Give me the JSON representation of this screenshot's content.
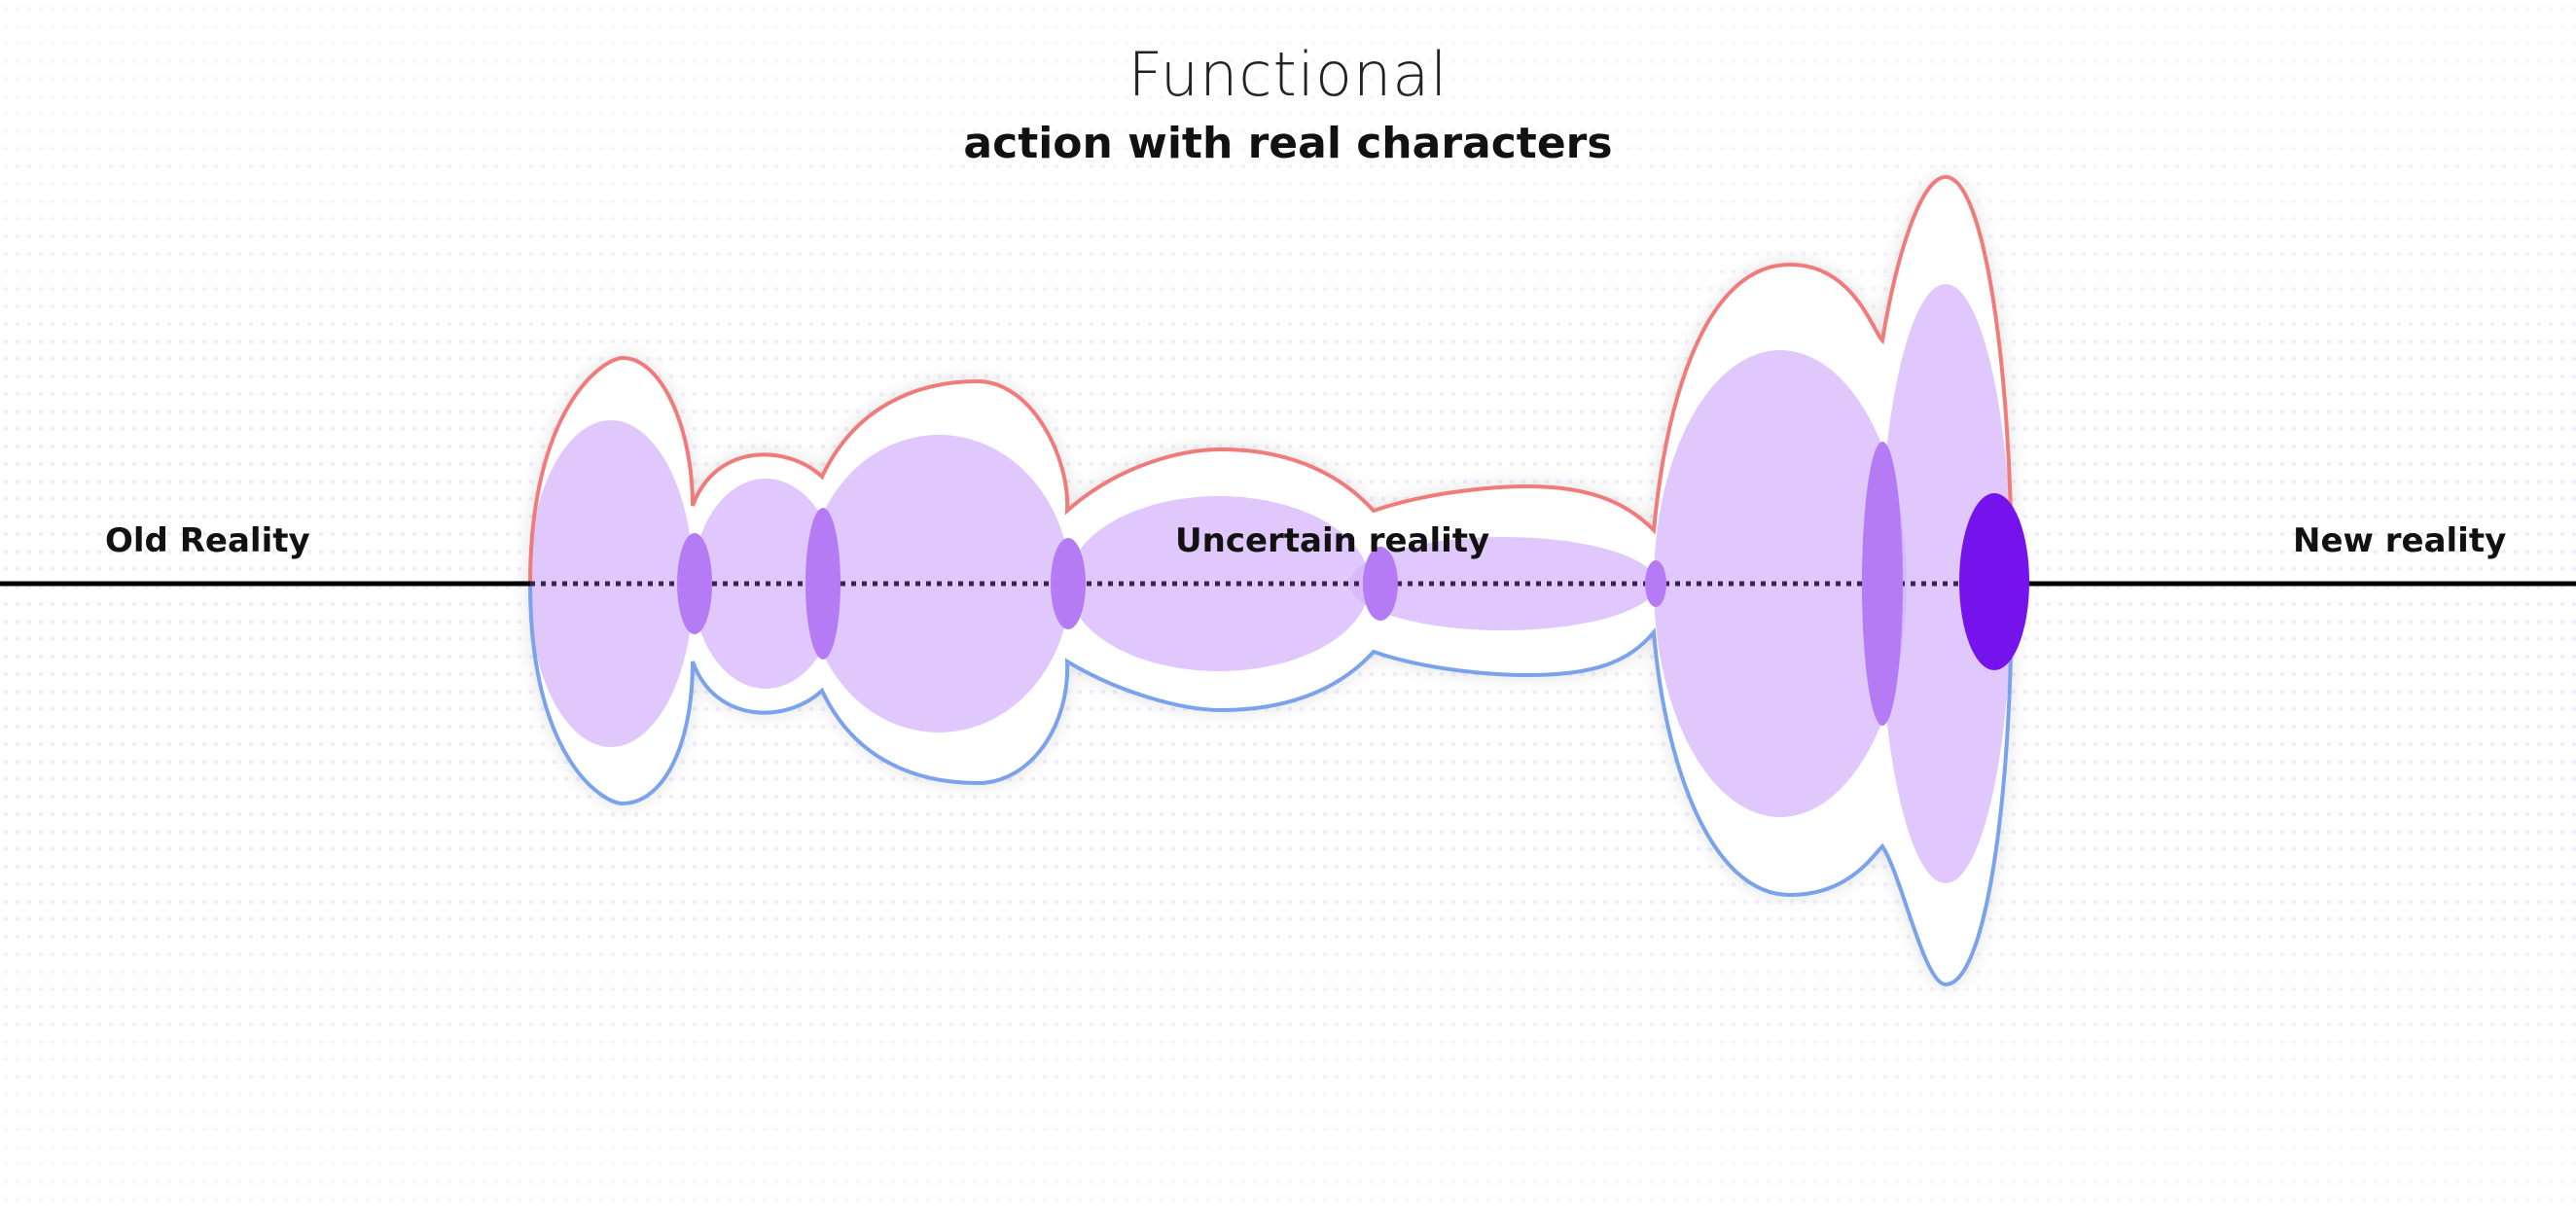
{
  "header": {
    "title": "Functional",
    "subtitle": "action with real characters"
  },
  "labels": {
    "old_reality": "Old Reality",
    "uncertain_reality": "Uncertain reality",
    "new_reality": "New reality"
  },
  "colors": {
    "upper_outline": "#f07b7b",
    "lower_outline": "#7ba2ec",
    "light_fill": "#d5b5fb",
    "medium_node": "#b57bf5",
    "goal_node": "#7513ec",
    "baseline": "#000000"
  }
}
